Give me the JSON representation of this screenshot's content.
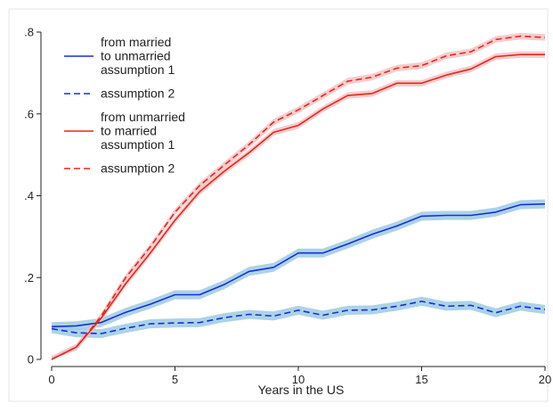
{
  "chart_data": {
    "type": "line",
    "title": "",
    "xlabel": "Years in the US",
    "ylabel": "",
    "xlim": [
      0,
      20
    ],
    "ylim": [
      0,
      0.8
    ],
    "xticks": [
      0,
      5,
      10,
      15,
      20
    ],
    "xtick_labels": [
      "0",
      "5",
      "10",
      "15",
      "20"
    ],
    "yticks": [
      0,
      0.2,
      0.4,
      0.6,
      0.8
    ],
    "ytick_labels": [
      "0",
      ".2",
      ".4",
      ".6",
      ".8"
    ],
    "grid": false,
    "legend_position": "top-left",
    "legend": [
      {
        "lines": [
          "from married",
          "to unmarried",
          "assumption 1"
        ],
        "series": 0
      },
      {
        "lines": [
          "assumption 2"
        ],
        "series": 1
      },
      {
        "lines": [
          "from unmarried",
          "to married",
          "assumption 1"
        ],
        "series": 2
      },
      {
        "lines": [
          "assumption 2"
        ],
        "series": 3
      }
    ],
    "x": [
      0,
      1,
      2,
      3,
      4,
      5,
      6,
      7,
      8,
      9,
      10,
      11,
      12,
      13,
      14,
      15,
      16,
      17,
      18,
      19,
      20
    ],
    "series": [
      {
        "name": "from married to unmarried assumption 1",
        "color": "#1a2fd6",
        "band_color": "#9ccbe4",
        "dash": "solid",
        "values": [
          0.08,
          0.082,
          0.09,
          0.115,
          0.135,
          0.158,
          0.158,
          0.183,
          0.215,
          0.225,
          0.26,
          0.26,
          0.282,
          0.306,
          0.326,
          0.35,
          0.352,
          0.352,
          0.36,
          0.378,
          0.38
        ],
        "band": 0.011
      },
      {
        "name": "assumption 2",
        "color": "#1a2fd6",
        "band_color": "#9ccbe4",
        "dash": "dashed",
        "values": [
          0.075,
          0.065,
          0.063,
          0.076,
          0.087,
          0.089,
          0.09,
          0.102,
          0.11,
          0.106,
          0.12,
          0.108,
          0.12,
          0.121,
          0.13,
          0.142,
          0.13,
          0.132,
          0.114,
          0.13,
          0.122
        ],
        "band": 0.011
      },
      {
        "name": "from unmarried to married assumption 1",
        "color": "#e8261f",
        "band_color": "#f2c4c4",
        "dash": "solid",
        "values": [
          0.0,
          0.03,
          0.1,
          0.185,
          0.26,
          0.34,
          0.41,
          0.46,
          0.505,
          0.555,
          0.572,
          0.612,
          0.645,
          0.65,
          0.675,
          0.675,
          0.695,
          0.71,
          0.74,
          0.745,
          0.745
        ],
        "band": 0.008
      },
      {
        "name": "assumption 2",
        "color": "#e8261f",
        "band_color": "#f2c4c4",
        "dash": "dashed",
        "values": [
          0.0,
          0.03,
          0.105,
          0.2,
          0.275,
          0.36,
          0.425,
          0.475,
          0.525,
          0.58,
          0.61,
          0.645,
          0.68,
          0.69,
          0.712,
          0.718,
          0.742,
          0.752,
          0.782,
          0.79,
          0.787
        ],
        "band": 0.008
      }
    ]
  }
}
